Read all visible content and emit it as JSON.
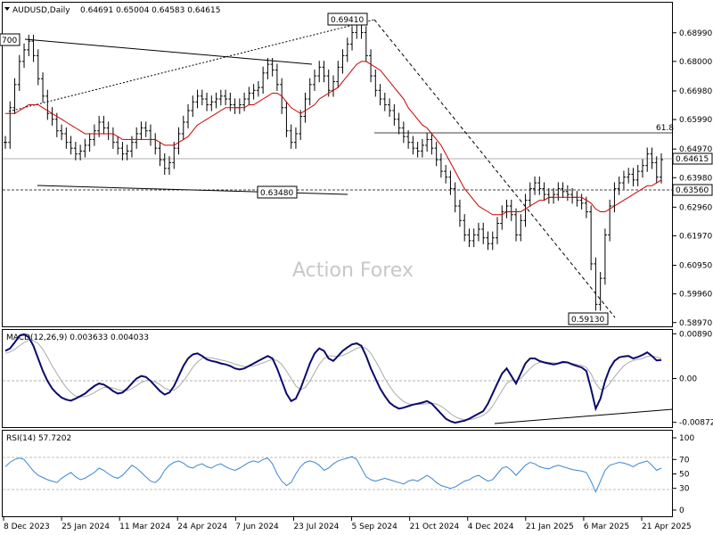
{
  "header": {
    "symbol": "AUDUSD,Daily",
    "ohlc": "0.64691 0.65004 0.64583 0.64615"
  },
  "watermark": "Action Forex",
  "colors": {
    "price": "#000000",
    "ma": "#cc0000",
    "macd": "#0a0a6e",
    "signal": "#aaaaaa",
    "rsi": "#3a86d0"
  },
  "chart_data": [
    {
      "type": "line",
      "panel": "price",
      "y_ticks": [
        "0.68990",
        "0.68000",
        "0.66980",
        "0.65990",
        "0.64970",
        "0.63980",
        "0.62960",
        "0.61970",
        "0.60950",
        "0.59960",
        "0.58970"
      ],
      "ylim": [
        0.5887,
        0.7
      ],
      "x_ticks": [
        "8 Dec 2023",
        "25 Jan 2024",
        "11 Mar 2024",
        "24 Apr 2024",
        "7 Jun 2024",
        "23 Jul 2024",
        "5 Sep 2024",
        "21 Oct 2024",
        "4 Dec 2024",
        "21 Jan 2025",
        "6 Mar 2025",
        "21 Apr 2025"
      ],
      "current_price": "0.64615",
      "support_level": "0.63560",
      "fib_label": "61.8",
      "annotations": [
        "0.69410",
        "0.63480",
        "0.59130",
        "700"
      ],
      "close": [
        0.652,
        0.664,
        0.672,
        0.68,
        0.684,
        0.687,
        0.682,
        0.674,
        0.668,
        0.662,
        0.66,
        0.656,
        0.655,
        0.652,
        0.65,
        0.648,
        0.649,
        0.651,
        0.653,
        0.656,
        0.659,
        0.657,
        0.655,
        0.652,
        0.65,
        0.648,
        0.649,
        0.652,
        0.655,
        0.657,
        0.656,
        0.653,
        0.65,
        0.646,
        0.643,
        0.645,
        0.65,
        0.655,
        0.659,
        0.663,
        0.666,
        0.668,
        0.667,
        0.665,
        0.666,
        0.667,
        0.668,
        0.667,
        0.665,
        0.664,
        0.665,
        0.667,
        0.669,
        0.67,
        0.671,
        0.676,
        0.679,
        0.677,
        0.672,
        0.664,
        0.656,
        0.652,
        0.655,
        0.661,
        0.667,
        0.672,
        0.675,
        0.678,
        0.675,
        0.67,
        0.673,
        0.678,
        0.682,
        0.686,
        0.69,
        0.693,
        0.69,
        0.682,
        0.675,
        0.67,
        0.667,
        0.665,
        0.663,
        0.66,
        0.657,
        0.654,
        0.652,
        0.65,
        0.649,
        0.651,
        0.653,
        0.65,
        0.646,
        0.642,
        0.64,
        0.636,
        0.63,
        0.625,
        0.62,
        0.618,
        0.62,
        0.622,
        0.619,
        0.617,
        0.619,
        0.624,
        0.628,
        0.63,
        0.627,
        0.62,
        0.625,
        0.632,
        0.636,
        0.638,
        0.636,
        0.634,
        0.633,
        0.634,
        0.636,
        0.635,
        0.634,
        0.633,
        0.632,
        0.631,
        0.628,
        0.61,
        0.596,
        0.605,
        0.62,
        0.63,
        0.636,
        0.638,
        0.64,
        0.641,
        0.639,
        0.642,
        0.644,
        0.648,
        0.645,
        0.64,
        0.646
      ],
      "ma": [
        0.662,
        0.662,
        0.662,
        0.663,
        0.664,
        0.665,
        0.665,
        0.665,
        0.664,
        0.663,
        0.662,
        0.661,
        0.66,
        0.659,
        0.658,
        0.657,
        0.656,
        0.655,
        0.655,
        0.655,
        0.655,
        0.655,
        0.655,
        0.655,
        0.654,
        0.653,
        0.653,
        0.653,
        0.653,
        0.653,
        0.653,
        0.653,
        0.653,
        0.652,
        0.651,
        0.651,
        0.651,
        0.652,
        0.653,
        0.654,
        0.656,
        0.658,
        0.659,
        0.66,
        0.661,
        0.662,
        0.663,
        0.664,
        0.664,
        0.664,
        0.664,
        0.664,
        0.665,
        0.665,
        0.666,
        0.667,
        0.668,
        0.669,
        0.669,
        0.668,
        0.666,
        0.664,
        0.663,
        0.662,
        0.663,
        0.664,
        0.665,
        0.667,
        0.668,
        0.669,
        0.67,
        0.671,
        0.673,
        0.675,
        0.677,
        0.679,
        0.68,
        0.68,
        0.679,
        0.678,
        0.677,
        0.675,
        0.673,
        0.671,
        0.669,
        0.667,
        0.664,
        0.662,
        0.66,
        0.658,
        0.657,
        0.655,
        0.653,
        0.651,
        0.648,
        0.645,
        0.642,
        0.639,
        0.636,
        0.634,
        0.632,
        0.63,
        0.629,
        0.628,
        0.627,
        0.627,
        0.627,
        0.628,
        0.628,
        0.628,
        0.628,
        0.629,
        0.63,
        0.631,
        0.632,
        0.632,
        0.633,
        0.633,
        0.633,
        0.633,
        0.633,
        0.633,
        0.633,
        0.633,
        0.632,
        0.631,
        0.629,
        0.628,
        0.628,
        0.629,
        0.63,
        0.631,
        0.632,
        0.633,
        0.634,
        0.635,
        0.636,
        0.637,
        0.637,
        0.638,
        0.639
      ]
    },
    {
      "type": "line",
      "panel": "macd",
      "title": "MACD(12,26,9) 0.003633 0.004033",
      "y_ticks": [
        "0.008901",
        "0.00",
        "-0.008729"
      ],
      "ylim": [
        -0.0095,
        0.0095
      ],
      "macd": [
        0.0055,
        0.006,
        0.0072,
        0.0085,
        0.0088,
        0.0082,
        0.0065,
        0.004,
        0.0015,
        -0.0005,
        -0.002,
        -0.003,
        -0.0038,
        -0.0042,
        -0.0044,
        -0.004,
        -0.0035,
        -0.003,
        -0.0022,
        -0.0015,
        -0.001,
        -0.0012,
        -0.0018,
        -0.0025,
        -0.003,
        -0.0028,
        -0.002,
        -0.001,
        0.0,
        0.0005,
        0.0003,
        -0.0005,
        -0.0015,
        -0.0025,
        -0.0032,
        -0.0028,
        -0.0015,
        0.0005,
        0.0025,
        0.004,
        0.0048,
        0.005,
        0.0045,
        0.0038,
        0.0035,
        0.0033,
        0.003,
        0.0028,
        0.0025,
        0.002,
        0.0018,
        0.002,
        0.0025,
        0.003,
        0.0035,
        0.004,
        0.0045,
        0.004,
        0.002,
        -0.0005,
        -0.003,
        -0.0045,
        -0.004,
        -0.002,
        0.0005,
        0.003,
        0.005,
        0.006,
        0.0055,
        0.004,
        0.0035,
        0.0045,
        0.0055,
        0.0062,
        0.0068,
        0.007,
        0.0065,
        0.0045,
        0.002,
        0.0,
        -0.002,
        -0.0035,
        -0.0048,
        -0.0055,
        -0.006,
        -0.0058,
        -0.0055,
        -0.0052,
        -0.005,
        -0.0048,
        -0.0045,
        -0.005,
        -0.006,
        -0.007,
        -0.008,
        -0.0085,
        -0.0088,
        -0.0086,
        -0.0084,
        -0.008,
        -0.0075,
        -0.007,
        -0.0065,
        -0.005,
        -0.003,
        -0.001,
        0.001,
        0.002,
        0.0005,
        -0.001,
        0.001,
        0.003,
        0.004,
        0.004,
        0.0035,
        0.0032,
        0.003,
        0.0028,
        0.003,
        0.0033,
        0.0032,
        0.0028,
        0.0025,
        0.0022,
        0.0015,
        -0.002,
        -0.006,
        -0.004,
        -0.0005,
        0.002,
        0.0035,
        0.0042,
        0.0044,
        0.0045,
        0.004,
        0.0043,
        0.0047,
        0.0052,
        0.0045,
        0.0036,
        0.0037
      ],
      "signal": [
        0.005,
        0.0053,
        0.0058,
        0.0065,
        0.0072,
        0.0076,
        0.0075,
        0.007,
        0.0058,
        0.0042,
        0.0025,
        0.001,
        -0.0005,
        -0.0018,
        -0.0028,
        -0.0035,
        -0.0037,
        -0.0036,
        -0.0033,
        -0.0028,
        -0.0022,
        -0.0018,
        -0.0017,
        -0.0019,
        -0.0022,
        -0.0024,
        -0.0024,
        -0.002,
        -0.0014,
        -0.0008,
        -0.0004,
        -0.0004,
        -0.0007,
        -0.0012,
        -0.0019,
        -0.0023,
        -0.0023,
        -0.0016,
        -0.0005,
        0.0008,
        0.0022,
        0.0033,
        0.004,
        0.0042,
        0.0041,
        0.0039,
        0.0037,
        0.0035,
        0.0032,
        0.0029,
        0.0026,
        0.0024,
        0.0024,
        0.0025,
        0.0028,
        0.0031,
        0.0035,
        0.0038,
        0.0036,
        0.0028,
        0.0015,
        0.0,
        -0.0015,
        -0.0022,
        -0.0018,
        -0.0005,
        0.0012,
        0.0028,
        0.004,
        0.0045,
        0.0045,
        0.0044,
        0.0046,
        0.005,
        0.0055,
        0.006,
        0.0063,
        0.006,
        0.005,
        0.0035,
        0.0018,
        0.0,
        -0.0015,
        -0.0028,
        -0.0038,
        -0.0046,
        -0.005,
        -0.0052,
        -0.0052,
        -0.0051,
        -0.005,
        -0.0049,
        -0.0051,
        -0.0055,
        -0.0062,
        -0.007,
        -0.0076,
        -0.008,
        -0.0082,
        -0.0082,
        -0.008,
        -0.0077,
        -0.0073,
        -0.0066,
        -0.0055,
        -0.004,
        -0.0024,
        -0.001,
        -0.0003,
        -0.0004,
        0.0,
        0.001,
        0.002,
        0.0028,
        0.0032,
        0.0033,
        0.0032,
        0.0031,
        0.003,
        0.0031,
        0.0031,
        0.003,
        0.0028,
        0.0026,
        0.0022,
        0.001,
        -0.001,
        -0.0022,
        -0.002,
        -0.001,
        0.0003,
        0.0015,
        0.0025,
        0.0032,
        0.0036,
        0.0038,
        0.004,
        0.0044,
        0.0045,
        0.0043,
        0.004
      ]
    },
    {
      "type": "line",
      "panel": "rsi",
      "title": "RSI(14) 57.7202",
      "y_ticks": [
        "100",
        "70",
        "50",
        "30",
        "0"
      ],
      "ylim": [
        0,
        100
      ],
      "values": [
        60,
        66,
        70,
        72,
        70,
        62,
        54,
        48,
        45,
        42,
        40,
        38,
        44,
        48,
        52,
        46,
        42,
        44,
        48,
        52,
        58,
        55,
        50,
        46,
        44,
        48,
        55,
        62,
        58,
        52,
        46,
        40,
        38,
        44,
        55,
        62,
        66,
        68,
        65,
        60,
        58,
        62,
        64,
        60,
        58,
        62,
        64,
        60,
        57,
        55,
        58,
        62,
        66,
        68,
        66,
        70,
        72,
        64,
        50,
        40,
        34,
        38,
        50,
        60,
        66,
        68,
        66,
        62,
        55,
        58,
        64,
        68,
        70,
        72,
        74,
        70,
        58,
        46,
        42,
        40,
        42,
        44,
        42,
        40,
        38,
        36,
        40,
        42,
        40,
        44,
        48,
        44,
        38,
        34,
        32,
        30,
        32,
        36,
        40,
        42,
        46,
        48,
        44,
        40,
        42,
        50,
        58,
        60,
        55,
        48,
        55,
        62,
        66,
        64,
        60,
        58,
        57,
        60,
        62,
        60,
        58,
        56,
        55,
        54,
        52,
        40,
        25,
        40,
        55,
        62,
        64,
        66,
        65,
        63,
        60,
        64,
        66,
        68,
        62,
        55,
        58
      ]
    }
  ]
}
